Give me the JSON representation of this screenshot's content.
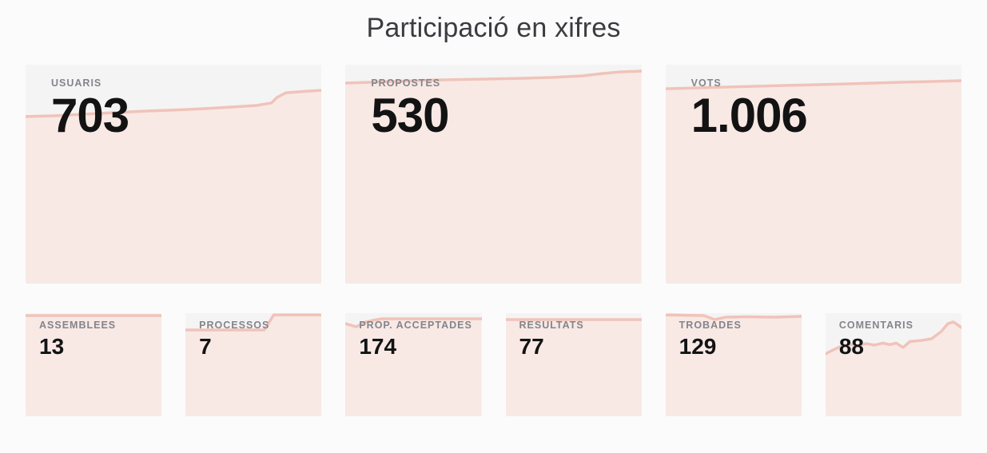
{
  "page": {
    "title": "Participació en xifres"
  },
  "colors": {
    "page_bg": "#fbfbfb",
    "card_bg": "#f4f4f4",
    "spark_fill": "#f8e9e5",
    "spark_line": "#f0c3b9",
    "label_color": "#84848c",
    "value_color": "#131313",
    "title_color": "#3b3b40"
  },
  "stats": {
    "large": [
      {
        "label": "USUARIS",
        "value": "703",
        "spark": [
          [
            0,
            23.7
          ],
          [
            10,
            23.3
          ],
          [
            20,
            22.6
          ],
          [
            30,
            21.9
          ],
          [
            40,
            21.2
          ],
          [
            50,
            20.7
          ],
          [
            60,
            20.1
          ],
          [
            70,
            19.3
          ],
          [
            78,
            18.6
          ],
          [
            83,
            17.5
          ],
          [
            85,
            14.9
          ],
          [
            88,
            12.8
          ],
          [
            93,
            12.3
          ],
          [
            100,
            11.7
          ]
        ]
      },
      {
        "label": "PROPOSTES",
        "value": "530",
        "spark": [
          [
            0,
            8.4
          ],
          [
            15,
            7.7
          ],
          [
            30,
            7.0
          ],
          [
            45,
            6.6
          ],
          [
            60,
            6.2
          ],
          [
            70,
            5.8
          ],
          [
            80,
            5.1
          ],
          [
            87,
            4.0
          ],
          [
            93,
            3.3
          ],
          [
            100,
            2.9
          ]
        ]
      },
      {
        "label": "VOTS",
        "value": "1.006",
        "spark": [
          [
            0,
            11.0
          ],
          [
            20,
            10.2
          ],
          [
            40,
            9.5
          ],
          [
            60,
            8.8
          ],
          [
            80,
            8.0
          ],
          [
            100,
            7.3
          ]
        ]
      }
    ],
    "small": [
      {
        "label": "ASSEMBLEES",
        "value": "13",
        "spark": [
          [
            0,
            2.3
          ],
          [
            100,
            2.3
          ]
        ]
      },
      {
        "label": "PROCESSOS",
        "value": "7",
        "spark": [
          [
            0,
            16.3
          ],
          [
            58,
            16.3
          ],
          [
            65,
            1.6
          ],
          [
            100,
            1.6
          ]
        ]
      },
      {
        "label": "PROP. ACCEPTADES",
        "value": "174",
        "spark": [
          [
            0,
            10.1
          ],
          [
            4,
            11.6
          ],
          [
            8,
            13.2
          ],
          [
            14,
            9.0
          ],
          [
            20,
            7.0
          ],
          [
            27,
            5.4
          ],
          [
            100,
            5.4
          ]
        ]
      },
      {
        "label": "RESULTATS",
        "value": "77",
        "spark": [
          [
            0,
            6.2
          ],
          [
            100,
            6.2
          ]
        ]
      },
      {
        "label": "TROBADES",
        "value": "129",
        "spark": [
          [
            0,
            1.6
          ],
          [
            28,
            2.3
          ],
          [
            36,
            6.2
          ],
          [
            44,
            3.9
          ],
          [
            60,
            3.5
          ],
          [
            80,
            3.9
          ],
          [
            100,
            3.1
          ]
        ]
      },
      {
        "label": "COMENTARIS",
        "value": "88",
        "spark": [
          [
            0,
            39.5
          ],
          [
            5,
            36.0
          ],
          [
            12,
            31.8
          ],
          [
            18,
            30.2
          ],
          [
            24,
            31.5
          ],
          [
            30,
            29.5
          ],
          [
            36,
            31.0
          ],
          [
            42,
            29.0
          ],
          [
            47,
            30.5
          ],
          [
            52,
            29.0
          ],
          [
            57,
            33.3
          ],
          [
            62,
            27.5
          ],
          [
            70,
            26.5
          ],
          [
            78,
            24.8
          ],
          [
            85,
            17.8
          ],
          [
            90,
            10.1
          ],
          [
            94,
            8.5
          ],
          [
            100,
            14.0
          ]
        ]
      }
    ]
  }
}
